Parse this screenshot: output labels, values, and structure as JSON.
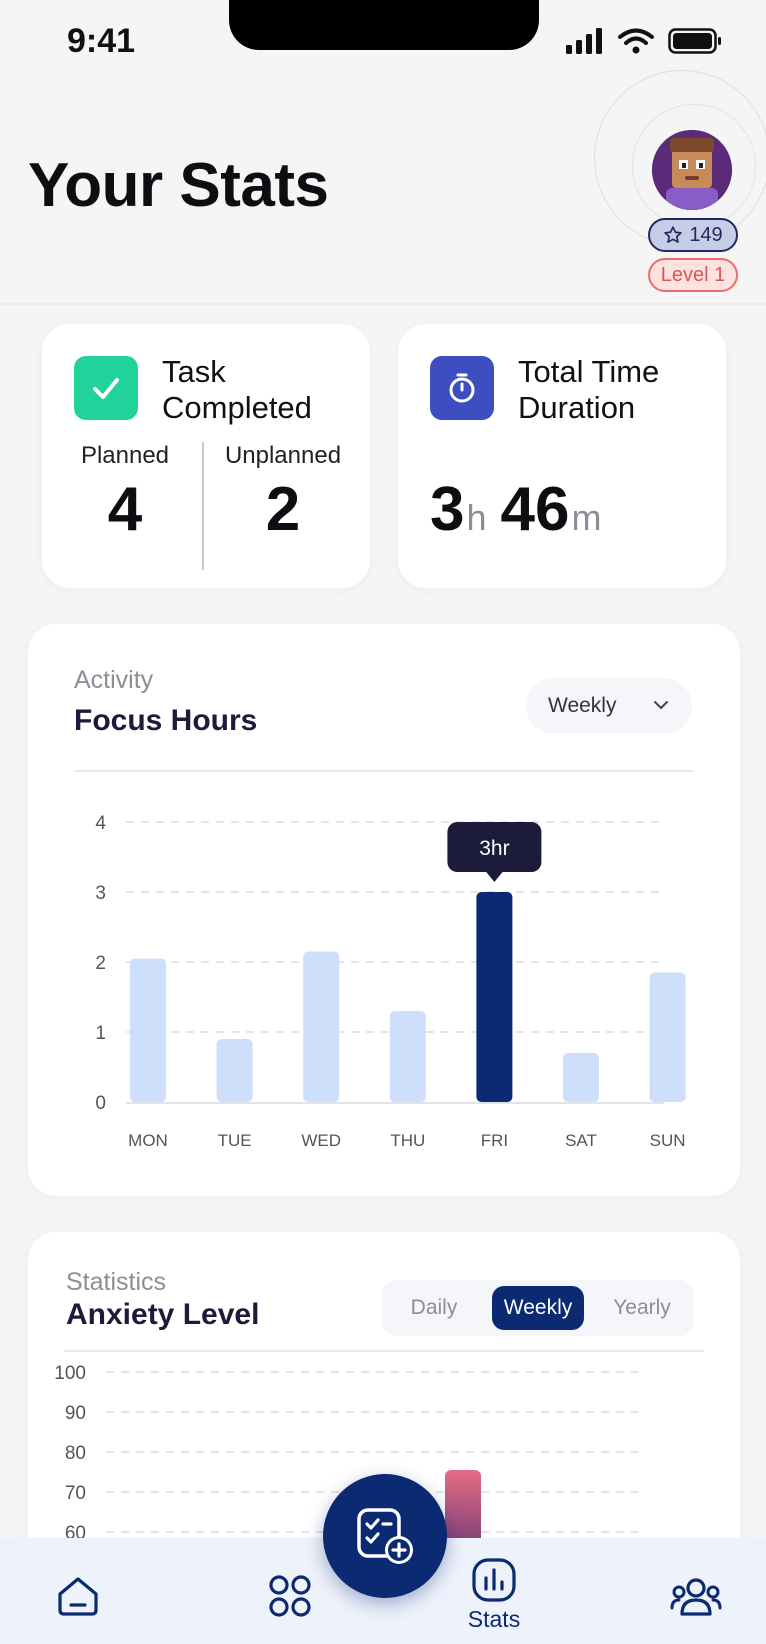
{
  "status_bar": {
    "time": "9:41"
  },
  "header": {
    "title": "Your Stats",
    "points": "149",
    "level": "Level 1"
  },
  "task_card": {
    "title": "Task Completed",
    "planned_label": "Planned",
    "planned_value": "4",
    "unplanned_label": "Unplanned",
    "unplanned_value": "2",
    "icon": "check-icon",
    "icon_color": "#1fd39a"
  },
  "time_card": {
    "title": "Total Time Duration",
    "hours": "3",
    "hours_unit": "h",
    "minutes": "46",
    "minutes_unit": "m",
    "icon": "stopwatch-icon",
    "icon_color": "#3d4fc0"
  },
  "focus_card": {
    "kicker": "Activity",
    "title": "Focus Hours",
    "dropdown_value": "Weekly",
    "tooltip": "3hr"
  },
  "anxiety_card": {
    "kicker": "Statistics",
    "title": "Anxiety Level",
    "segments": [
      "Daily",
      "Weekly",
      "Yearly"
    ],
    "active_segment": "Weekly"
  },
  "tab_bar": {
    "stats_label": "Stats",
    "accent": "#0b2a72"
  },
  "chart_data": [
    {
      "type": "bar",
      "title": "Focus Hours",
      "categories": [
        "MON",
        "TUE",
        "WED",
        "THU",
        "FRI",
        "SAT",
        "SUN"
      ],
      "values": [
        2.05,
        0.9,
        2.15,
        1.3,
        3.0,
        0.7,
        1.85
      ],
      "y_ticks": [
        "0",
        "1",
        "2",
        "3",
        "4"
      ],
      "ylim": [
        0,
        4
      ],
      "highlight": "FRI",
      "bar_color": "#cddffa",
      "highlight_color": "#0b2a72",
      "grid": true
    },
    {
      "type": "bar",
      "title": "Anxiety Level",
      "y_ticks": [
        "100",
        "90",
        "80",
        "70",
        "60"
      ],
      "ylim": [
        55,
        100
      ],
      "grid": true
    }
  ]
}
